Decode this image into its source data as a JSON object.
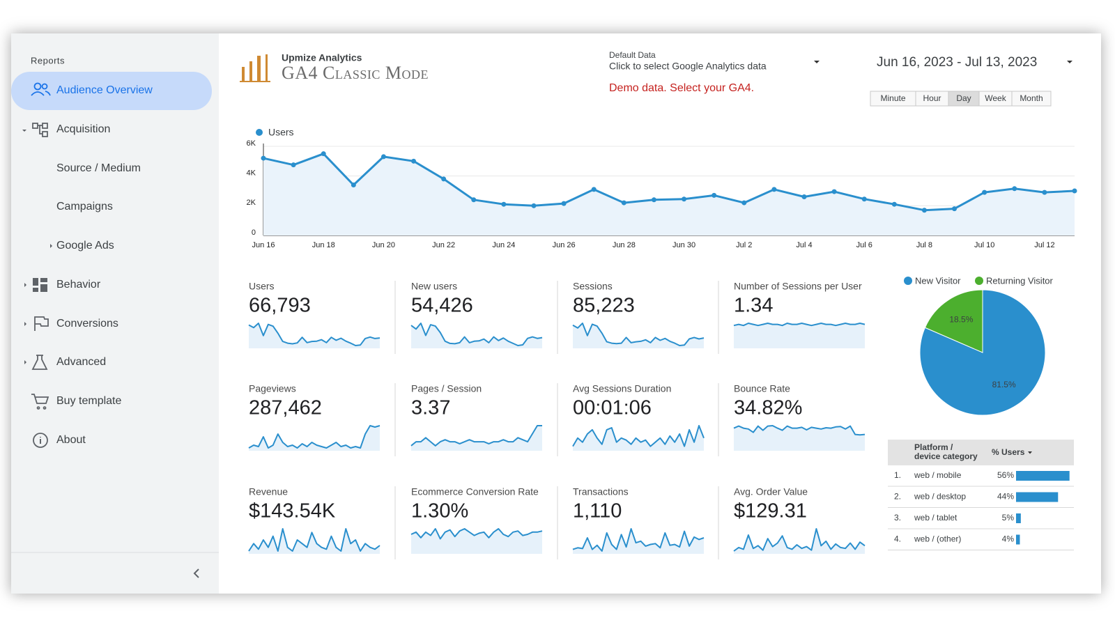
{
  "sidebar": {
    "section": "Reports",
    "items": [
      {
        "label": "Audience Overview",
        "active": true
      },
      {
        "label": "Acquisition"
      },
      {
        "label": "Source / Medium"
      },
      {
        "label": "Campaigns"
      },
      {
        "label": "Google Ads"
      },
      {
        "label": "Behavior"
      },
      {
        "label": "Conversions"
      },
      {
        "label": "Advanced"
      },
      {
        "label": "Buy template"
      },
      {
        "label": "About"
      }
    ]
  },
  "header": {
    "brand": "Upmize Analytics",
    "title": "GA4 Classic Mode",
    "data_source_label": "Default Data",
    "data_source_hint": "Click to select Google Analytics data",
    "warning": "Demo data. Select your GA4.",
    "date_range": "Jun 16, 2023 - Jul 13, 2023",
    "granularity": [
      {
        "label": "Minute"
      },
      {
        "label": "Hour"
      },
      {
        "label": "Day",
        "active": true
      },
      {
        "label": "Week"
      },
      {
        "label": "Month"
      }
    ]
  },
  "users_chart": {
    "type": "line",
    "categories": [
      "Jun 16",
      null,
      "Jun 18",
      null,
      "Jun 20",
      null,
      "Jun 22",
      null,
      "Jun 24",
      null,
      "Jun 26",
      null,
      "Jun 28",
      null,
      "Jun 30",
      null,
      "Jul 2",
      null,
      "Jul 4",
      null,
      "Jul 6",
      null,
      "Jul 8",
      null,
      "Jul 10",
      null,
      "Jul 12",
      null
    ],
    "series": [
      {
        "name": "Users",
        "color": "#2a8fcd",
        "values": [
          5200,
          4750,
          5500,
          3400,
          5300,
          5000,
          3800,
          2400,
          2100,
          2000,
          2150,
          3100,
          2200,
          2400,
          2450,
          2700,
          2200,
          3100,
          2600,
          2950,
          2450,
          2100,
          1700,
          1800,
          2900,
          3150,
          2900,
          3000
        ]
      }
    ],
    "ylim": [
      0,
      6000
    ],
    "yticks": [
      0,
      {
        "value": 2000,
        "label": "2K"
      },
      {
        "value": 4000,
        "label": "4K"
      },
      {
        "value": 6000,
        "label": "6K"
      }
    ],
    "grid": true
  },
  "kpis": [
    {
      "label": "Users",
      "value": "66,793",
      "trend": [
        5200,
        4750,
        5500,
        3400,
        5300,
        5000,
        3800,
        2400,
        2100,
        2000,
        2150,
        3100,
        2200,
        2400,
        2450,
        2700,
        2200,
        3100,
        2600,
        2950,
        2450,
        2100,
        1700,
        1800,
        2900,
        3150,
        2900,
        3000
      ]
    },
    {
      "label": "New users",
      "value": "54,426",
      "trend": [
        4200,
        3700,
        4500,
        2800,
        4300,
        4100,
        3200,
        2000,
        1700,
        1650,
        1800,
        2600,
        1800,
        2000,
        2050,
        2300,
        1800,
        2600,
        2100,
        2450,
        2000,
        1700,
        1400,
        1500,
        2400,
        2600,
        2400,
        2500
      ]
    },
    {
      "label": "Sessions",
      "value": "85,223",
      "trend": [
        6500,
        5900,
        6900,
        4300,
        6700,
        6300,
        4800,
        3000,
        2700,
        2600,
        2700,
        3900,
        2800,
        3000,
        3100,
        3400,
        2800,
        3900,
        3300,
        3700,
        3100,
        2700,
        2200,
        2300,
        3600,
        3900,
        3600,
        3800
      ]
    },
    {
      "label": "Number of Sessions per User",
      "value": "1.34",
      "trend": [
        1.33,
        1.34,
        1.33,
        1.35,
        1.34,
        1.33,
        1.34,
        1.35,
        1.34,
        1.34,
        1.33,
        1.35,
        1.34,
        1.34,
        1.35,
        1.34,
        1.33,
        1.34,
        1.35,
        1.34,
        1.34,
        1.33,
        1.34,
        1.35,
        1.34,
        1.34,
        1.35,
        1.34
      ]
    },
    {
      "label": "Pageviews",
      "value": "287,462",
      "trend": [
        20,
        22,
        21,
        28,
        20,
        22,
        30,
        24,
        21,
        22,
        20,
        23,
        21,
        24,
        22,
        21,
        20,
        22,
        24,
        21,
        22,
        20,
        21,
        20,
        30,
        36,
        35,
        36
      ]
    },
    {
      "label": "Pages / Session",
      "value": "3.37",
      "trend": [
        3.2,
        3.3,
        3.3,
        3.4,
        3.3,
        3.2,
        3.3,
        3.35,
        3.3,
        3.3,
        3.25,
        3.3,
        3.35,
        3.3,
        3.3,
        3.3,
        3.25,
        3.3,
        3.3,
        3.35,
        3.3,
        3.3,
        3.4,
        3.35,
        3.3,
        3.5,
        3.7,
        3.7
      ]
    },
    {
      "label": "Avg Sessions Duration",
      "value": "00:01:06",
      "trend": [
        62,
        66,
        64,
        68,
        70,
        66,
        63,
        70,
        71,
        64,
        66,
        65,
        63,
        66,
        64,
        65,
        62,
        64,
        66,
        63,
        67,
        64,
        68,
        62,
        70,
        64,
        72,
        66
      ]
    },
    {
      "label": "Bounce Rate",
      "value": "34.82%",
      "trend": [
        35,
        35.5,
        35,
        34.8,
        34,
        35.5,
        34.5,
        35.5,
        35.6,
        35,
        34.5,
        35.5,
        35,
        35,
        35.2,
        34.6,
        35.2,
        35,
        34.8,
        35.1,
        35,
        35.3,
        35.4,
        34.8,
        35.5,
        33.5,
        33.4,
        33.5
      ]
    },
    {
      "label": "Revenue",
      "value": "$143.54K",
      "trend": [
        3,
        5,
        3.5,
        6,
        4,
        7,
        3,
        9,
        4,
        3,
        6,
        5,
        4,
        8,
        5,
        4,
        3.5,
        7,
        4,
        3,
        9,
        5,
        6,
        3,
        5,
        4,
        3.5,
        4.5
      ]
    },
    {
      "label": "Ecommerce Conversion Rate",
      "value": "1.30%",
      "trend": [
        1.28,
        1.3,
        1.25,
        1.3,
        1.27,
        1.33,
        1.24,
        1.3,
        1.32,
        1.26,
        1.31,
        1.33,
        1.3,
        1.27,
        1.29,
        1.3,
        1.25,
        1.3,
        1.33,
        1.28,
        1.26,
        1.3,
        1.31,
        1.27,
        1.28,
        1.3,
        1.3,
        1.31
      ]
    },
    {
      "label": "Transactions",
      "value": "1,110",
      "trend": [
        30,
        32,
        31,
        44,
        30,
        35,
        28,
        50,
        36,
        30,
        48,
        33,
        55,
        38,
        40,
        34,
        36,
        37,
        32,
        50,
        35,
        36,
        33,
        52,
        34,
        45,
        42,
        44
      ]
    },
    {
      "label": "Avg. Order Value",
      "value": "$129.31",
      "trend": [
        120,
        124,
        122,
        138,
        123,
        126,
        121,
        134,
        125,
        129,
        137,
        124,
        122,
        127,
        123,
        125,
        121,
        145,
        126,
        131,
        122,
        128,
        124,
        123,
        129,
        122,
        130,
        126
      ]
    }
  ],
  "visitor_pie": {
    "type": "pie",
    "categories": [
      "New Visitor",
      "Returning Visitor"
    ],
    "values": [
      81.5,
      18.5
    ],
    "value_labels": [
      "81.5%",
      "18.5%"
    ],
    "colors": [
      "#2a8fcd",
      "#4caf2e"
    ]
  },
  "device_table": {
    "columns": [
      {
        "lines": [
          "Platform /",
          "device category"
        ]
      },
      "% Users"
    ],
    "color": "#2a8fcd",
    "rows": [
      {
        "rank": "1.",
        "label": "web / mobile",
        "value": 56,
        "value_label": "56%"
      },
      {
        "rank": "2.",
        "label": "web / desktop",
        "value": 44,
        "value_label": "44%"
      },
      {
        "rank": "3.",
        "label": "web / tablet",
        "value": 5,
        "value_label": "5%"
      },
      {
        "rank": "4.",
        "label": "web / (other)",
        "value": 4,
        "value_label": "4%"
      }
    ]
  }
}
